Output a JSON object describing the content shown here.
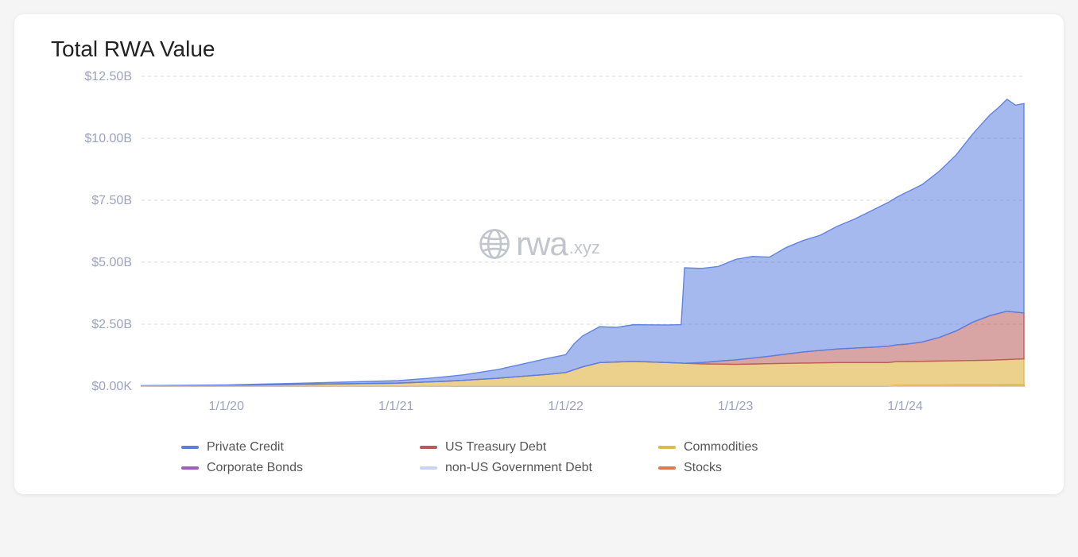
{
  "chart": {
    "type": "stacked-area",
    "title": "Total RWA Value",
    "title_fontsize": 28,
    "title_color": "#222222",
    "background_color": "#ffffff",
    "grid_color": "#d8d8d8",
    "grid_dash": "4,4",
    "axis_label_color": "#9aa3c0",
    "axis_label_fontsize": 16,
    "y_axis": {
      "min": 0,
      "max": 12.5,
      "unit": "B USD",
      "tick_values": [
        0,
        2.5,
        5.0,
        7.5,
        10.0,
        12.5
      ],
      "tick_labels": [
        "$0.00K",
        "$2.50B",
        "$5.00B",
        "$7.50B",
        "$10.00B",
        "$12.50B"
      ]
    },
    "x_axis": {
      "min": 2019.5,
      "max": 2024.7,
      "tick_values": [
        2020,
        2021,
        2022,
        2023,
        2024
      ],
      "tick_labels": [
        "1/1/20",
        "1/1/21",
        "1/1/22",
        "1/1/23",
        "1/1/24"
      ]
    },
    "watermark": {
      "text_main": "rwa",
      "text_suffix": ".xyz",
      "color": "#b8bcc3"
    },
    "legend_items": [
      {
        "label": "Private Credit",
        "color": "#5b7fe0"
      },
      {
        "label": "US Treasury Debt",
        "color": "#b85a5a"
      },
      {
        "label": "Commodities",
        "color": "#e0b84f"
      },
      {
        "label": "Corporate Bonds",
        "color": "#9b5fb8"
      },
      {
        "label": "non-US Government Debt",
        "color": "#c8d4f0"
      },
      {
        "label": "Stocks",
        "color": "#e0784f"
      }
    ],
    "series": [
      {
        "name": "Stocks",
        "color": "#e0784f",
        "fill_opacity": 0.7,
        "points": [
          {
            "x": 2019.5,
            "y": 0
          },
          {
            "x": 2023.9,
            "y": 0
          },
          {
            "x": 2023.95,
            "y": 0.04
          },
          {
            "x": 2024.7,
            "y": 0.05
          }
        ]
      },
      {
        "name": "non-US Government Debt",
        "color": "#c8d4f0",
        "fill_opacity": 0.7,
        "points": [
          {
            "x": 2019.5,
            "y": 0
          },
          {
            "x": 2024.7,
            "y": 0
          }
        ]
      },
      {
        "name": "Corporate Bonds",
        "color": "#9b5fb8",
        "fill_opacity": 0.7,
        "points": [
          {
            "x": 2019.5,
            "y": 0
          },
          {
            "x": 2024.7,
            "y": 0
          }
        ]
      },
      {
        "name": "Commodities",
        "color": "#e0b84f",
        "fill_opacity": 0.65,
        "points": [
          {
            "x": 2019.5,
            "y": 0.01
          },
          {
            "x": 2020.0,
            "y": 0.03
          },
          {
            "x": 2020.5,
            "y": 0.08
          },
          {
            "x": 2021.0,
            "y": 0.12
          },
          {
            "x": 2021.3,
            "y": 0.2
          },
          {
            "x": 2021.6,
            "y": 0.32
          },
          {
            "x": 2021.9,
            "y": 0.48
          },
          {
            "x": 2022.0,
            "y": 0.55
          },
          {
            "x": 2022.1,
            "y": 0.78
          },
          {
            "x": 2022.2,
            "y": 0.95
          },
          {
            "x": 2022.4,
            "y": 1.0
          },
          {
            "x": 2022.6,
            "y": 0.95
          },
          {
            "x": 2022.8,
            "y": 0.9
          },
          {
            "x": 2023.0,
            "y": 0.88
          },
          {
            "x": 2023.3,
            "y": 0.92
          },
          {
            "x": 2023.6,
            "y": 0.95
          },
          {
            "x": 2024.0,
            "y": 0.95
          },
          {
            "x": 2024.3,
            "y": 0.98
          },
          {
            "x": 2024.5,
            "y": 1.0
          },
          {
            "x": 2024.7,
            "y": 1.05
          }
        ]
      },
      {
        "name": "US Treasury Debt",
        "color": "#b85a5a",
        "fill_opacity": 0.55,
        "points": [
          {
            "x": 2019.5,
            "y": 0
          },
          {
            "x": 2022.7,
            "y": 0
          },
          {
            "x": 2022.8,
            "y": 0.05
          },
          {
            "x": 2022.9,
            "y": 0.12
          },
          {
            "x": 2023.0,
            "y": 0.18
          },
          {
            "x": 2023.2,
            "y": 0.3
          },
          {
            "x": 2023.4,
            "y": 0.45
          },
          {
            "x": 2023.6,
            "y": 0.55
          },
          {
            "x": 2023.8,
            "y": 0.62
          },
          {
            "x": 2024.0,
            "y": 0.7
          },
          {
            "x": 2024.1,
            "y": 0.78
          },
          {
            "x": 2024.2,
            "y": 0.95
          },
          {
            "x": 2024.3,
            "y": 1.2
          },
          {
            "x": 2024.4,
            "y": 1.55
          },
          {
            "x": 2024.5,
            "y": 1.8
          },
          {
            "x": 2024.6,
            "y": 1.95
          },
          {
            "x": 2024.7,
            "y": 1.85
          }
        ]
      },
      {
        "name": "Private Credit",
        "color": "#5b7fe0",
        "fill_opacity": 0.55,
        "points": [
          {
            "x": 2019.5,
            "y": 0.01
          },
          {
            "x": 2020.0,
            "y": 0.02
          },
          {
            "x": 2020.5,
            "y": 0.05
          },
          {
            "x": 2021.0,
            "y": 0.1
          },
          {
            "x": 2021.2,
            "y": 0.15
          },
          {
            "x": 2021.4,
            "y": 0.22
          },
          {
            "x": 2021.6,
            "y": 0.35
          },
          {
            "x": 2021.8,
            "y": 0.55
          },
          {
            "x": 2021.9,
            "y": 0.65
          },
          {
            "x": 2022.0,
            "y": 0.72
          },
          {
            "x": 2022.05,
            "y": 1.05
          },
          {
            "x": 2022.1,
            "y": 1.25
          },
          {
            "x": 2022.2,
            "y": 1.45
          },
          {
            "x": 2022.3,
            "y": 1.4
          },
          {
            "x": 2022.4,
            "y": 1.48
          },
          {
            "x": 2022.5,
            "y": 1.5
          },
          {
            "x": 2022.6,
            "y": 1.52
          },
          {
            "x": 2022.68,
            "y": 1.55
          },
          {
            "x": 2022.7,
            "y": 3.85
          },
          {
            "x": 2022.8,
            "y": 3.8
          },
          {
            "x": 2022.9,
            "y": 3.82
          },
          {
            "x": 2023.0,
            "y": 4.05
          },
          {
            "x": 2023.1,
            "y": 4.1
          },
          {
            "x": 2023.2,
            "y": 4.0
          },
          {
            "x": 2023.3,
            "y": 4.3
          },
          {
            "x": 2023.4,
            "y": 4.5
          },
          {
            "x": 2023.5,
            "y": 4.65
          },
          {
            "x": 2023.6,
            "y": 4.95
          },
          {
            "x": 2023.7,
            "y": 5.2
          },
          {
            "x": 2023.8,
            "y": 5.5
          },
          {
            "x": 2023.9,
            "y": 5.8
          },
          {
            "x": 2024.0,
            "y": 6.1
          },
          {
            "x": 2024.1,
            "y": 6.35
          },
          {
            "x": 2024.2,
            "y": 6.7
          },
          {
            "x": 2024.3,
            "y": 7.1
          },
          {
            "x": 2024.4,
            "y": 7.6
          },
          {
            "x": 2024.5,
            "y": 8.1
          },
          {
            "x": 2024.55,
            "y": 8.3
          },
          {
            "x": 2024.6,
            "y": 8.55
          },
          {
            "x": 2024.65,
            "y": 8.35
          },
          {
            "x": 2024.7,
            "y": 8.45
          }
        ]
      }
    ]
  }
}
